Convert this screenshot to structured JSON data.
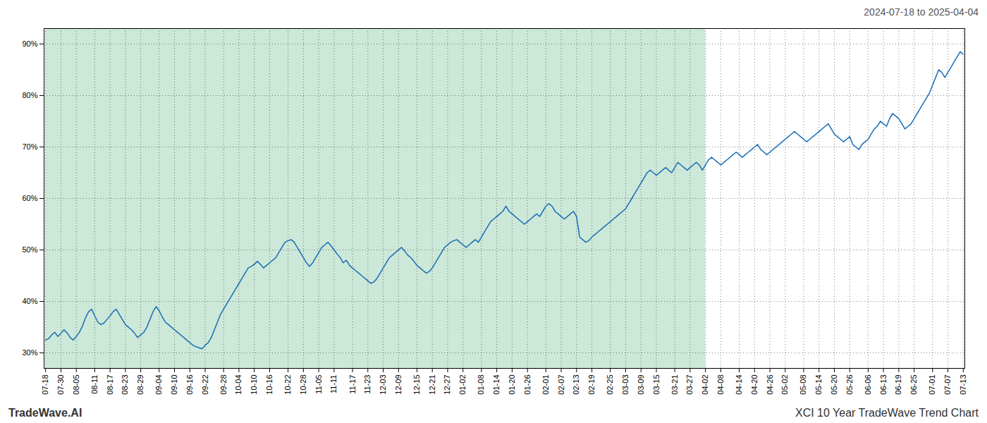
{
  "chart_data": {
    "type": "line",
    "title": "2024-07-18 to 2025-04-04",
    "annotations": [
      "TradeWave.AI",
      "XCI 10 Year TradeWave Trend Chart"
    ],
    "color": "#1a6db5",
    "grid": true,
    "ylim": [
      27,
      93
    ],
    "yticks": [
      {
        "value": 30,
        "label": "30%"
      },
      {
        "value": 40,
        "label": "40%"
      },
      {
        "value": 50,
        "label": "50%"
      },
      {
        "value": 60,
        "label": "60%"
      },
      {
        "value": 70,
        "label": "70%"
      },
      {
        "value": 80,
        "label": "80%"
      },
      {
        "value": 90,
        "label": "90%"
      }
    ],
    "shaded_range": {
      "from": "07-18",
      "to": "04-02",
      "color": "#cce8d8"
    },
    "categories": [
      "07-18",
      null,
      null,
      null,
      null,
      "07-30",
      null,
      null,
      null,
      null,
      "08-05",
      null,
      null,
      null,
      null,
      null,
      "08-11",
      null,
      null,
      null,
      null,
      "08-17",
      null,
      null,
      null,
      null,
      "08-23",
      null,
      null,
      null,
      null,
      "08-29",
      null,
      null,
      null,
      null,
      null,
      "09-04",
      null,
      null,
      null,
      null,
      "09-10",
      null,
      null,
      null,
      null,
      "09-16",
      null,
      null,
      null,
      null,
      "09-22",
      null,
      null,
      null,
      null,
      null,
      "09-28",
      null,
      null,
      null,
      null,
      "10-04",
      null,
      null,
      null,
      null,
      "10-10",
      null,
      null,
      null,
      null,
      "10-16",
      null,
      null,
      null,
      null,
      null,
      "10-22",
      null,
      null,
      null,
      null,
      "10-28",
      null,
      null,
      null,
      null,
      "11-05",
      null,
      null,
      null,
      null,
      "11-11",
      null,
      null,
      null,
      null,
      null,
      "11-17",
      null,
      null,
      null,
      null,
      "11-23",
      null,
      null,
      null,
      null,
      "12-03",
      null,
      null,
      null,
      null,
      "12-09",
      null,
      null,
      null,
      null,
      null,
      "12-15",
      null,
      null,
      null,
      null,
      "12-21",
      null,
      null,
      null,
      null,
      "12-27",
      null,
      null,
      null,
      null,
      "01-02",
      null,
      null,
      null,
      null,
      null,
      "01-08",
      null,
      null,
      null,
      null,
      "01-14",
      null,
      null,
      null,
      null,
      "01-20",
      null,
      null,
      null,
      null,
      "01-26",
      null,
      null,
      null,
      null,
      null,
      "02-01",
      null,
      null,
      null,
      null,
      "02-07",
      null,
      null,
      null,
      null,
      "02-13",
      null,
      null,
      null,
      null,
      "02-19",
      null,
      null,
      null,
      null,
      null,
      "02-25",
      null,
      null,
      null,
      null,
      "03-03",
      null,
      null,
      null,
      null,
      "03-09",
      null,
      null,
      null,
      null,
      "03-15",
      null,
      null,
      null,
      null,
      null,
      "03-21",
      null,
      null,
      null,
      null,
      "03-27",
      null,
      null,
      null,
      null,
      "04-02",
      null,
      null,
      null,
      null,
      "04-08",
      null,
      null,
      null,
      null,
      null,
      "04-14",
      null,
      null,
      null,
      null,
      "04-20",
      null,
      null,
      null,
      null,
      "04-26",
      null,
      null,
      null,
      null,
      "05-02",
      null,
      null,
      null,
      null,
      null,
      "05-08",
      null,
      null,
      null,
      null,
      "05-14",
      null,
      null,
      null,
      null,
      "05-20",
      null,
      null,
      null,
      null,
      "05-26",
      null,
      null,
      null,
      null,
      null,
      "06-06",
      null,
      null,
      null,
      null,
      "06-13",
      null,
      null,
      null,
      null,
      "06-19",
      null,
      null,
      null,
      null,
      "06-25",
      null,
      null,
      null,
      null,
      null,
      "07-01",
      null,
      null,
      null,
      null,
      "07-07",
      null,
      null,
      null,
      null,
      "07-13"
    ],
    "values": [
      32.5,
      32.8,
      33.5,
      34.0,
      33.2,
      33.8,
      34.5,
      33.9,
      33.0,
      32.5,
      33.2,
      34.0,
      35.2,
      36.8,
      38.0,
      38.5,
      37.2,
      36.0,
      35.5,
      35.8,
      36.5,
      37.2,
      38.0,
      38.5,
      37.5,
      36.5,
      35.5,
      35.0,
      34.5,
      33.8,
      33.0,
      33.5,
      34.0,
      35.0,
      36.5,
      38.0,
      39.0,
      38.2,
      37.0,
      36.0,
      35.5,
      35.0,
      34.5,
      34.0,
      33.5,
      33.0,
      32.5,
      32.0,
      31.5,
      31.2,
      31.0,
      30.8,
      31.5,
      32.0,
      33.0,
      34.5,
      36.0,
      37.5,
      38.5,
      39.5,
      40.5,
      41.5,
      42.5,
      43.5,
      44.5,
      45.5,
      46.5,
      46.8,
      47.2,
      47.8,
      47.2,
      46.5,
      47.0,
      47.5,
      48.0,
      48.5,
      49.5,
      50.5,
      51.5,
      51.8,
      52.0,
      51.5,
      50.5,
      49.5,
      48.5,
      47.5,
      46.8,
      47.5,
      48.5,
      49.5,
      50.5,
      51.0,
      51.5,
      50.8,
      50.0,
      49.2,
      48.5,
      47.5,
      48.0,
      47.0,
      46.5,
      46.0,
      45.5,
      45.0,
      44.5,
      44.0,
      43.5,
      43.8,
      44.5,
      45.5,
      46.5,
      47.5,
      48.5,
      49.0,
      49.5,
      50.0,
      50.5,
      49.8,
      49.0,
      48.5,
      47.8,
      47.0,
      46.5,
      46.0,
      45.5,
      45.8,
      46.5,
      47.5,
      48.5,
      49.5,
      50.5,
      51.0,
      51.5,
      51.8,
      52.0,
      51.5,
      51.0,
      50.5,
      51.0,
      51.5,
      52.0,
      51.5,
      52.5,
      53.5,
      54.5,
      55.5,
      56.0,
      56.5,
      57.0,
      57.5,
      58.5,
      57.5,
      57.0,
      56.5,
      56.0,
      55.5,
      55.0,
      55.5,
      56.0,
      56.5,
      57.0,
      56.5,
      57.5,
      58.5,
      59.0,
      58.5,
      57.5,
      57.0,
      56.5,
      56.0,
      56.5,
      57.0,
      57.5,
      56.5,
      52.5,
      52.0,
      51.5,
      51.8,
      52.5,
      53.0,
      53.5,
      54.0,
      54.5,
      55.0,
      55.5,
      56.0,
      56.5,
      57.0,
      57.5,
      58.0,
      59.0,
      60.0,
      61.0,
      62.0,
      63.0,
      64.0,
      65.0,
      65.5,
      65.0,
      64.5,
      65.0,
      65.5,
      66.0,
      65.5,
      65.0,
      66.0,
      67.0,
      66.5,
      66.0,
      65.5,
      66.0,
      66.5,
      67.0,
      66.5,
      65.5,
      66.5,
      67.5,
      68.0,
      67.5,
      67.0,
      66.5,
      67.0,
      67.5,
      68.0,
      68.5,
      69.0,
      68.5,
      68.0,
      68.5,
      69.0,
      69.5,
      70.0,
      70.5,
      69.5,
      69.0,
      68.5,
      69.0,
      69.5,
      70.0,
      70.5,
      71.0,
      71.5,
      72.0,
      72.5,
      73.0,
      72.5,
      72.0,
      71.5,
      71.0,
      71.5,
      72.0,
      72.5,
      73.0,
      73.5,
      74.0,
      74.5,
      73.5,
      72.5,
      72.0,
      71.5,
      71.0,
      71.5,
      72.0,
      70.5,
      70.0,
      69.5,
      70.5,
      71.0,
      71.5,
      72.5,
      73.5,
      74.0,
      75.0,
      74.5,
      74.0,
      75.5,
      76.5,
      76.0,
      75.5,
      74.5,
      73.5,
      74.0,
      74.5,
      75.5,
      76.5,
      77.5,
      78.5,
      79.5,
      80.5,
      82.0,
      83.5,
      85.0,
      84.5,
      83.5,
      84.5,
      85.5,
      86.5,
      87.5,
      88.5,
      88.0
    ]
  }
}
